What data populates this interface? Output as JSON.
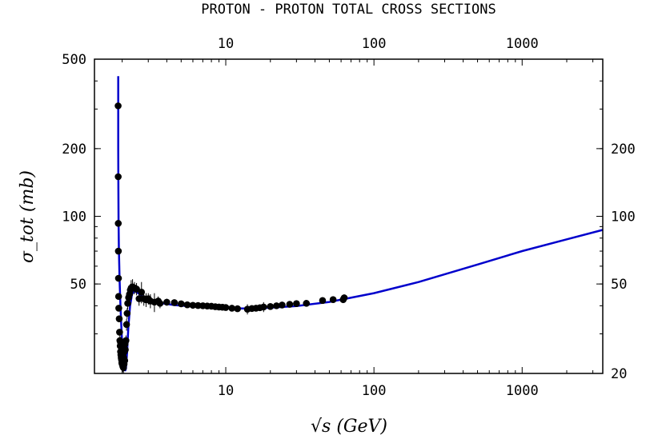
{
  "chart_data": {
    "type": "scatter",
    "title": "PROTON - PROTON TOTAL CROSS SECTIONS",
    "xlabel": "√s (GeV)",
    "ylabel": "σ_tot (mb)",
    "x_scale": "log",
    "y_scale": "log",
    "xlim": [
      1.3,
      3500
    ],
    "ylim": [
      20,
      500
    ],
    "x_ticks": [
      10,
      100,
      1000
    ],
    "x_tick_labels": [
      "10",
      "100",
      "1000"
    ],
    "y_ticks_left": [
      50,
      100,
      200,
      500
    ],
    "y_tick_labels_left": [
      "50",
      "100",
      "200",
      "500"
    ],
    "y_ticks_right": [
      20,
      50,
      100,
      200
    ],
    "y_tick_labels_right": [
      "20",
      "50",
      "100",
      "200"
    ],
    "grid": false,
    "colors": {
      "fit": "#0000cc",
      "data": "#000000"
    },
    "series": [
      {
        "type": "line",
        "points": [
          [
            1.88,
            420
          ],
          [
            1.882,
            200
          ],
          [
            1.885,
            130
          ],
          [
            1.89,
            95
          ],
          [
            1.9,
            72
          ],
          [
            1.92,
            52
          ],
          [
            1.95,
            39
          ],
          [
            1.98,
            31
          ],
          [
            2.0,
            27
          ],
          [
            2.03,
            24
          ],
          [
            2.06,
            22
          ],
          [
            2.09,
            20.5
          ],
          [
            2.12,
            21
          ],
          [
            2.16,
            25
          ],
          [
            2.2,
            32
          ],
          [
            2.26,
            40
          ],
          [
            2.33,
            45
          ],
          [
            2.4,
            46.5
          ],
          [
            2.5,
            46
          ],
          [
            2.7,
            44.5
          ],
          [
            3.0,
            42.5
          ],
          [
            3.5,
            41.3
          ],
          [
            4.5,
            40.3
          ],
          [
            6,
            39.7
          ],
          [
            8,
            39.3
          ],
          [
            10,
            39
          ],
          [
            13,
            38.9
          ],
          [
            16,
            38.9
          ],
          [
            20,
            39.2
          ],
          [
            30,
            39.9
          ],
          [
            50,
            41.6
          ],
          [
            100,
            45.5
          ],
          [
            200,
            51
          ],
          [
            500,
            61
          ],
          [
            1000,
            70
          ],
          [
            2000,
            79
          ],
          [
            3500,
            87
          ]
        ]
      },
      {
        "type": "scatter",
        "points": [
          [
            1.878,
            310,
            0
          ],
          [
            1.88,
            150,
            0
          ],
          [
            1.882,
            93,
            0
          ],
          [
            1.885,
            70,
            0
          ],
          [
            1.888,
            53,
            0
          ],
          [
            1.892,
            44,
            0
          ],
          [
            1.897,
            39,
            0
          ],
          [
            1.91,
            35,
            0
          ],
          [
            1.92,
            30.5,
            0
          ],
          [
            1.93,
            28,
            1.5
          ],
          [
            1.94,
            26.5,
            1.5
          ],
          [
            1.95,
            25,
            1.5
          ],
          [
            1.96,
            24.2,
            1.5
          ],
          [
            1.97,
            23.5,
            1.5
          ],
          [
            1.98,
            23,
            1.2
          ],
          [
            1.99,
            22.3,
            1.2
          ],
          [
            2.0,
            22,
            1.2
          ],
          [
            2.02,
            21.5,
            1.2
          ],
          [
            2.04,
            21.2,
            1.2
          ],
          [
            2.06,
            22,
            1.2
          ],
          [
            2.08,
            22.8,
            1.2
          ],
          [
            1.95,
            27.5,
            1.5
          ],
          [
            1.98,
            26,
            1.5
          ],
          [
            2.01,
            25.5,
            1.5
          ],
          [
            2.03,
            24.5,
            1.5
          ],
          [
            2.05,
            23.5,
            1.5
          ],
          [
            2.07,
            25,
            1.5
          ],
          [
            2.09,
            27,
            1.5
          ],
          [
            2.1,
            25.5,
            1.5
          ],
          [
            2.12,
            28,
            1.5
          ],
          [
            2.14,
            33,
            2
          ],
          [
            2.16,
            37,
            2
          ],
          [
            2.18,
            41,
            2.5
          ],
          [
            2.21,
            43.5,
            3
          ],
          [
            2.24,
            45,
            3
          ],
          [
            2.27,
            47,
            3
          ],
          [
            2.3,
            48,
            4
          ],
          [
            2.35,
            48.5,
            4
          ],
          [
            2.42,
            48,
            3
          ],
          [
            2.5,
            47.5,
            3
          ],
          [
            2.6,
            43,
            3
          ],
          [
            2.7,
            46,
            5
          ],
          [
            2.8,
            43,
            3
          ],
          [
            2.9,
            42.5,
            3
          ],
          [
            3.0,
            43,
            2.5
          ],
          [
            3.1,
            42,
            3
          ],
          [
            3.3,
            41.5,
            4
          ],
          [
            3.5,
            42,
            2
          ],
          [
            3.6,
            41,
            2
          ],
          [
            4.0,
            41.5,
            1.5
          ],
          [
            4.5,
            41.3,
            1.2
          ],
          [
            5.0,
            40.8,
            1
          ],
          [
            5.5,
            40.4,
            1
          ],
          [
            6.0,
            40.2,
            1
          ],
          [
            6.5,
            40.1,
            1
          ],
          [
            7.0,
            40,
            1
          ],
          [
            7.5,
            39.9,
            1
          ],
          [
            8.0,
            39.8,
            1
          ],
          [
            8.5,
            39.6,
            1
          ],
          [
            9.0,
            39.5,
            1
          ],
          [
            9.5,
            39.4,
            0.8
          ],
          [
            10.0,
            39.3,
            0.8
          ],
          [
            11,
            39,
            0.8
          ],
          [
            12,
            38.8,
            0.8
          ],
          [
            14,
            38.6,
            2
          ],
          [
            15,
            38.9,
            1
          ],
          [
            16,
            39,
            1
          ],
          [
            17,
            39.2,
            1
          ],
          [
            18,
            39.5,
            2
          ],
          [
            20,
            39.7,
            1
          ],
          [
            22,
            40,
            1
          ],
          [
            24,
            40.3,
            1
          ],
          [
            27,
            40.6,
            1
          ],
          [
            30,
            40.9,
            1
          ],
          [
            35,
            41,
            0.8
          ],
          [
            45,
            42.2,
            1
          ],
          [
            53,
            42.6,
            1
          ],
          [
            62,
            42.6,
            1.5
          ],
          [
            63,
            43.4,
            1.5
          ]
        ]
      }
    ]
  }
}
